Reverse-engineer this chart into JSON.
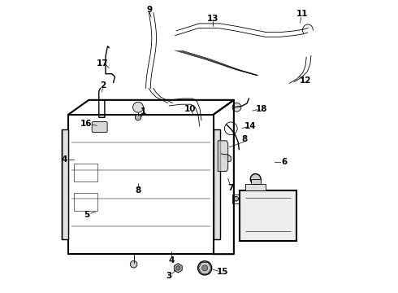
{
  "background_color": "#ffffff",
  "line_color": "#000000",
  "figure_width": 4.9,
  "figure_height": 3.6,
  "dpi": 100,
  "lw_thin": 0.6,
  "lw_med": 1.0,
  "lw_thick": 1.5
}
